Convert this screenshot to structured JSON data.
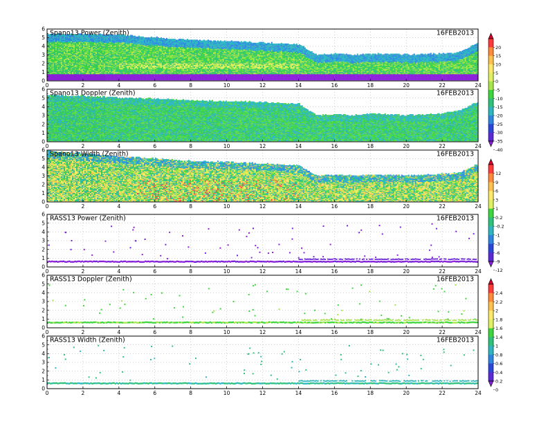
{
  "chart_data": [
    {
      "type": "heatmap",
      "title": "Spano13 Power (Zenith)",
      "date": "16FEB2013",
      "x_ticks": [
        0,
        2,
        4,
        6,
        8,
        10,
        12,
        14,
        16,
        18,
        20,
        22,
        24
      ],
      "y_ticks": [
        0,
        1,
        2,
        3,
        4,
        5,
        6
      ],
      "xlim": [
        0,
        24
      ],
      "ylim": [
        0,
        6
      ],
      "grid": true,
      "echo_top_km": [
        [
          0,
          5.4
        ],
        [
          2,
          5.4
        ],
        [
          4,
          5.3
        ],
        [
          6,
          5.0
        ],
        [
          8,
          4.7
        ],
        [
          10,
          4.6
        ],
        [
          12,
          4.4
        ],
        [
          14,
          4.2
        ],
        [
          15,
          3.0
        ],
        [
          16,
          3.1
        ],
        [
          17,
          3.0
        ],
        [
          18,
          3.1
        ],
        [
          19,
          3.1
        ],
        [
          20,
          3.0
        ],
        [
          21,
          3.1
        ],
        [
          22,
          3.1
        ],
        [
          23,
          3.3
        ],
        [
          24,
          4.4
        ]
      ],
      "colorbar": "power"
    },
    {
      "type": "heatmap",
      "title": "Spano13 Doppler (Zenith)",
      "date": "16FEB2013",
      "x_ticks": [
        0,
        2,
        4,
        6,
        8,
        10,
        12,
        14,
        16,
        18,
        20,
        22,
        24
      ],
      "y_ticks": [
        0,
        1,
        2,
        3,
        4,
        5,
        6
      ],
      "xlim": [
        0,
        24
      ],
      "ylim": [
        0,
        6
      ],
      "grid": true,
      "echo_top_km": [
        [
          0,
          5.3
        ],
        [
          2,
          5.2
        ],
        [
          4,
          5.0
        ],
        [
          6,
          4.9
        ],
        [
          8,
          4.7
        ],
        [
          10,
          4.6
        ],
        [
          12,
          4.5
        ],
        [
          14,
          4.3
        ],
        [
          15,
          3.0
        ],
        [
          16,
          3.1
        ],
        [
          17,
          3.0
        ],
        [
          18,
          3.2
        ],
        [
          19,
          3.1
        ],
        [
          20,
          3.0
        ],
        [
          21,
          3.1
        ],
        [
          22,
          3.2
        ],
        [
          23,
          3.6
        ],
        [
          24,
          4.6
        ]
      ],
      "colorbar": "power"
    },
    {
      "type": "heatmap",
      "title": "Spano13 Width (Zenith)",
      "date": "16FEB2013",
      "x_ticks": [
        0,
        2,
        4,
        6,
        8,
        10,
        12,
        14,
        16,
        18,
        20,
        22,
        24
      ],
      "y_ticks": [
        0,
        1,
        2,
        3,
        4,
        5,
        6
      ],
      "xlim": [
        0,
        24
      ],
      "ylim": [
        0,
        6
      ],
      "grid": true,
      "echo_top_km": [
        [
          0,
          5.9
        ],
        [
          2,
          5.6
        ],
        [
          4,
          5.2
        ],
        [
          6,
          5.0
        ],
        [
          8,
          4.7
        ],
        [
          10,
          4.6
        ],
        [
          12,
          4.4
        ],
        [
          14,
          4.2
        ],
        [
          15,
          3.0
        ],
        [
          16,
          3.1
        ],
        [
          17,
          3.0
        ],
        [
          18,
          3.1
        ],
        [
          19,
          3.1
        ],
        [
          20,
          3.0
        ],
        [
          21,
          3.1
        ],
        [
          22,
          3.2
        ],
        [
          23,
          3.4
        ],
        [
          24,
          4.4
        ]
      ],
      "colorbar": "width"
    },
    {
      "type": "scatter",
      "title": "RASS13 Power (Zenith)",
      "date": "16FEB2013",
      "x_ticks": [
        0,
        2,
        4,
        6,
        8,
        10,
        12,
        14,
        16,
        18,
        20,
        22,
        24
      ],
      "y_ticks": [
        0,
        1,
        2,
        3,
        4,
        5,
        6
      ],
      "xlim": [
        0,
        24
      ],
      "ylim": [
        0,
        6
      ],
      "grid": true,
      "band_height_km": 0.65,
      "colorbar": "width"
    },
    {
      "type": "scatter",
      "title": "RASS13 Doppler (Zenith)",
      "date": "16FEB2013",
      "x_ticks": [
        0,
        2,
        4,
        6,
        8,
        10,
        12,
        14,
        16,
        18,
        20,
        22,
        24
      ],
      "y_ticks": [
        0,
        1,
        2,
        3,
        4,
        5,
        6
      ],
      "xlim": [
        0,
        24
      ],
      "ylim": [
        0,
        6
      ],
      "grid": true,
      "band_height_km": 0.65,
      "colorbar": "rass"
    },
    {
      "type": "scatter",
      "title": "RASS13 Width (Zenith)",
      "date": "16FEB2013",
      "x_ticks": [
        0,
        2,
        4,
        6,
        8,
        10,
        12,
        14,
        16,
        18,
        20,
        22,
        24
      ],
      "y_ticks": [
        0,
        1,
        2,
        3,
        4,
        5,
        6
      ],
      "xlim": [
        0,
        24
      ],
      "ylim": [
        0,
        6
      ],
      "grid": true,
      "band_height_km": 0.65,
      "colorbar": "rass"
    }
  ],
  "colorbars": {
    "power": {
      "labels": [
        "20",
        "15",
        "10",
        "5",
        "0",
        "-5",
        "-10",
        "-15",
        "-20",
        "-25",
        "-30",
        "-35",
        "-40"
      ],
      "colors": [
        "#d4002e",
        "#ff3a3a",
        "#ff8a3a",
        "#ffc24d",
        "#ffe96b",
        "#dff062",
        "#a8e64a",
        "#3fd53f",
        "#2ec27c",
        "#2eb7c0",
        "#2f86e0",
        "#2c47d8",
        "#5a2ad4",
        "#8a1fd8"
      ]
    },
    "width": {
      "labels": [
        "12",
        "9",
        "6",
        "3",
        "1",
        "0.2",
        "-0.2",
        "-1",
        "-3",
        "-6",
        "-9",
        "-12"
      ],
      "colors": [
        "#d4002e",
        "#ff3a3a",
        "#ff8a3a",
        "#ffc24d",
        "#ffe96b",
        "#dff062",
        "#3fd53f",
        "#2ec27c",
        "#2eb7c0",
        "#2f86e0",
        "#2c47d8",
        "#5a2ad4",
        "#8a1fd8"
      ]
    },
    "rass": {
      "labels": [
        "2.4",
        "2.2",
        "2",
        "1.8",
        "1.6",
        "1.4",
        "1",
        "0.8",
        "0.6",
        "0.4",
        "0.2",
        "0"
      ],
      "colors": [
        "#d4002e",
        "#ff3a3a",
        "#ff8a3a",
        "#ffc24d",
        "#ffe96b",
        "#dff062",
        "#3fd53f",
        "#2ec27c",
        "#2eb7c0",
        "#2f86e0",
        "#2c47d8",
        "#5a2ad4",
        "#8a1fd8"
      ]
    }
  }
}
